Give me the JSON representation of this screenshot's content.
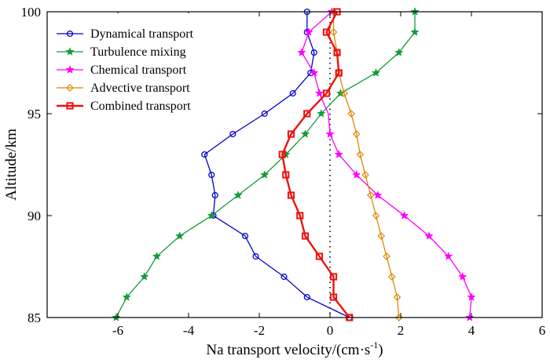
{
  "chart_data": {
    "type": "line",
    "xlabel_main": "Na transport velocity/(cm·s",
    "xlabel_sup": "-1",
    "xlabel_close": ")",
    "ylabel": "Altitude/km",
    "xlim": [
      -8,
      6
    ],
    "ylim": [
      85,
      100
    ],
    "xticks": [
      -6,
      -4,
      -2,
      0,
      2,
      4,
      6
    ],
    "yticks": [
      85,
      90,
      95,
      100
    ],
    "zero_line": true,
    "legend_position": "top-left",
    "altitudes": [
      85,
      86,
      87,
      88,
      89,
      90,
      91,
      92,
      93,
      94,
      95,
      96,
      97,
      98,
      99,
      100
    ],
    "series": [
      {
        "name": "Dynamical transport",
        "color": "#0000cc",
        "marker": "circle",
        "x": [
          0.55,
          -0.65,
          -1.3,
          -2.1,
          -2.4,
          -3.3,
          -3.25,
          -3.35,
          -3.55,
          -2.75,
          -1.85,
          -1.05,
          -0.55,
          -0.45,
          -0.65,
          -0.65
        ],
        "y": [
          85,
          86,
          87,
          88,
          89,
          90,
          91,
          92,
          93,
          94,
          95,
          96,
          97,
          98,
          99,
          100
        ]
      },
      {
        "name": "Turbulence mixing",
        "color": "#159a39",
        "marker": "star",
        "x": [
          -6.05,
          -5.75,
          -5.25,
          -4.9,
          -4.25,
          -3.35,
          -2.6,
          -1.85,
          -1.25,
          -0.7,
          -0.25,
          0.3,
          1.3,
          1.95,
          2.4,
          2.4
        ],
        "y": [
          85,
          86,
          87,
          88,
          89,
          90,
          91,
          92,
          93,
          94,
          95,
          96,
          97,
          98,
          99,
          100
        ]
      },
      {
        "name": "Chemical transport",
        "color": "#ff00ff",
        "marker": "star",
        "x": [
          3.95,
          4.0,
          3.75,
          3.35,
          2.8,
          2.1,
          1.35,
          0.75,
          0.25,
          0.0,
          -0.05,
          -0.3,
          -0.45,
          -0.8,
          -0.6,
          0.05
        ],
        "y": [
          85,
          86,
          87,
          88,
          89,
          90,
          91,
          92,
          93,
          94,
          95,
          96,
          97,
          98,
          99,
          100
        ],
        "markers_y": [
          85,
          86,
          87,
          88,
          89,
          90,
          91,
          92,
          93,
          94,
          96,
          97,
          98,
          99,
          100
        ]
      },
      {
        "name": "Advective transport",
        "color": "#dd8800",
        "marker": "diamond",
        "x": [
          1.95,
          1.9,
          1.75,
          1.6,
          1.45,
          1.3,
          1.15,
          1.0,
          0.85,
          0.75,
          0.6,
          0.4,
          0.25,
          0.2,
          0.1,
          0.1
        ],
        "y": [
          85,
          86,
          87,
          88,
          89,
          90,
          91,
          92,
          93,
          94,
          95,
          96,
          97,
          98,
          99,
          100
        ]
      },
      {
        "name": "Combined transport",
        "color": "#ee1111",
        "marker": "square",
        "x": [
          0.55,
          0.1,
          0.1,
          -0.3,
          -0.7,
          -0.85,
          -1.1,
          -1.25,
          -1.35,
          -1.1,
          -0.65,
          -0.1,
          0.25,
          0.2,
          -0.1,
          0.2
        ],
        "y": [
          85,
          86,
          87,
          88,
          89,
          90,
          91,
          92,
          93,
          94,
          95,
          96,
          97,
          98,
          99,
          100
        ]
      }
    ]
  }
}
